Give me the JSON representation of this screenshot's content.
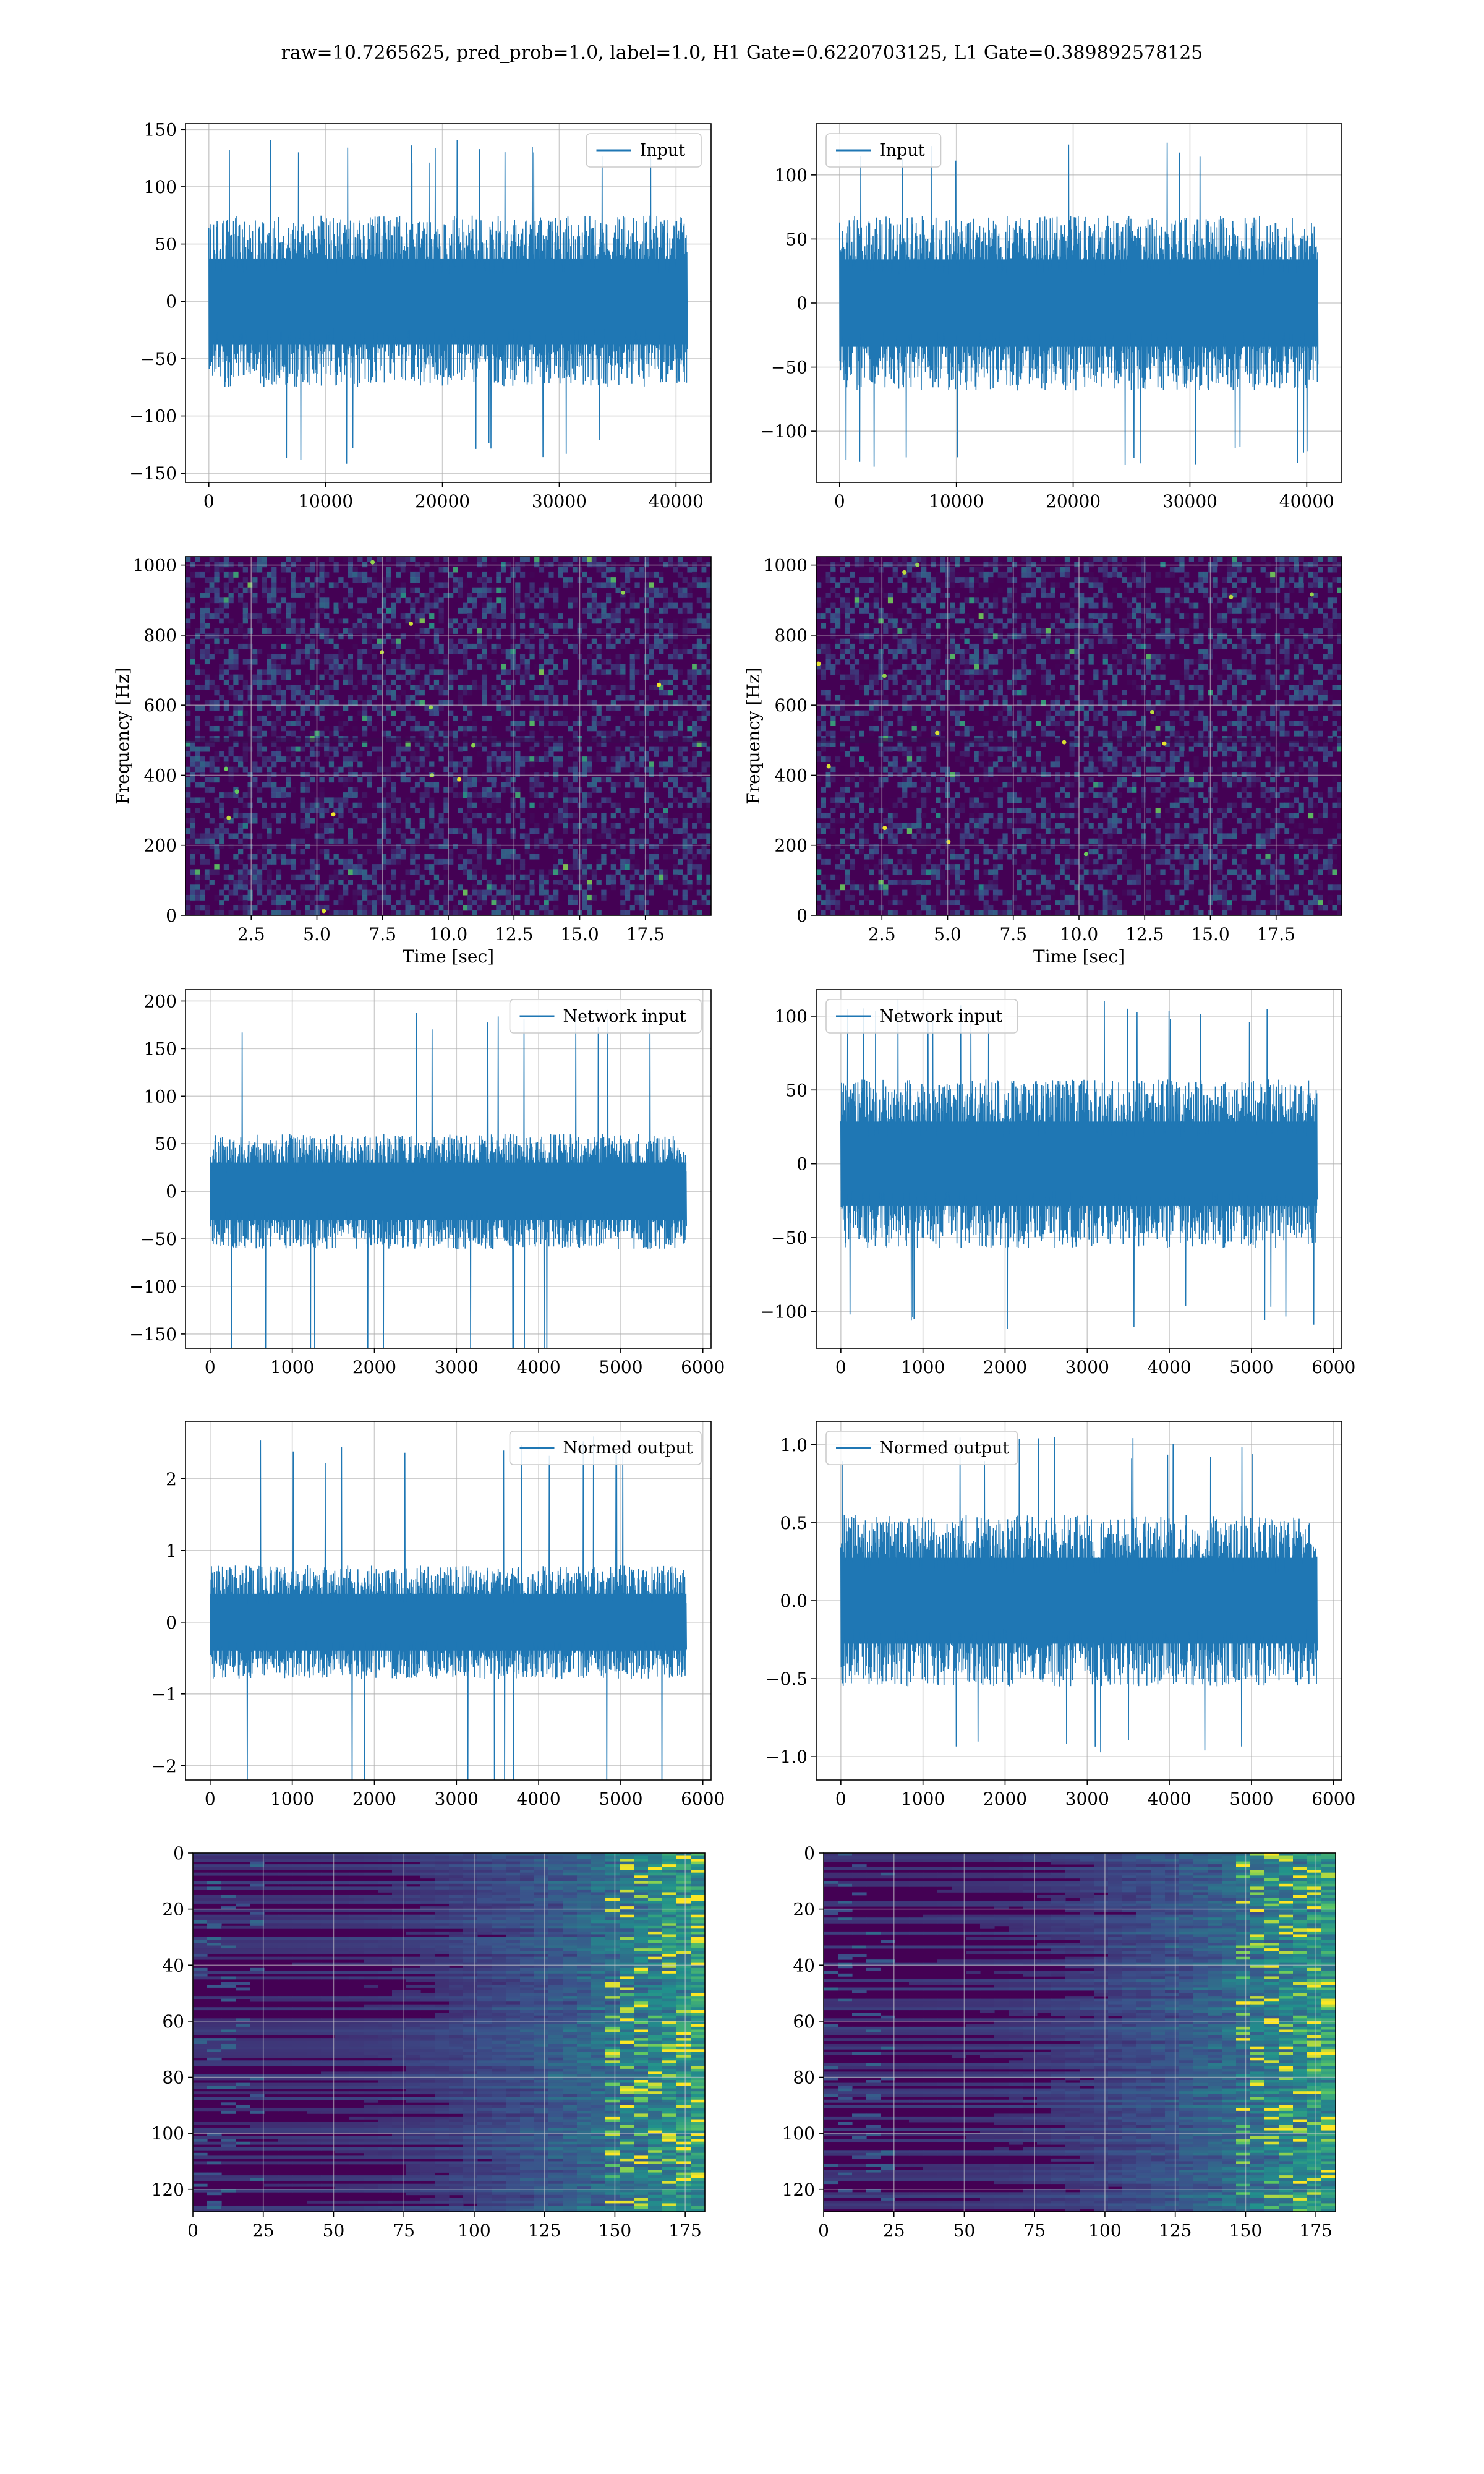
{
  "suptitle": "raw=10.7265625, pred_prob=1.0, label=1.0, H1 Gate=0.6220703125, L1 Gate=0.389892578125",
  "colors": {
    "line": "#1f77b4",
    "grid": "#b0b0b0",
    "viridis_dark": "#440154",
    "viridis_mid": "#21918c",
    "viridis_bright": "#fde725"
  },
  "chart_data": [
    {
      "id": "h1-input",
      "type": "line",
      "title": "",
      "xlabel": "",
      "ylabel": "",
      "legend": "Input",
      "legend_loc": "upper right",
      "grid": true,
      "xlim": [
        -2000,
        43000
      ],
      "ylim": [
        -158,
        155
      ],
      "xticks": [
        0,
        10000,
        20000,
        30000,
        40000
      ],
      "yticks": [
        -150,
        -100,
        -50,
        0,
        50,
        100,
        150
      ],
      "x_range": [
        0,
        40960
      ],
      "envelope": {
        "typical": 68,
        "peak": 142
      }
    },
    {
      "id": "l1-input",
      "type": "line",
      "title": "",
      "xlabel": "",
      "ylabel": "",
      "legend": "Input",
      "legend_loc": "upper left",
      "grid": true,
      "xlim": [
        -2000,
        43000
      ],
      "ylim": [
        -140,
        140
      ],
      "xticks": [
        0,
        10000,
        20000,
        30000,
        40000
      ],
      "yticks": [
        -100,
        -50,
        0,
        50,
        100
      ],
      "x_range": [
        0,
        40960
      ],
      "envelope": {
        "typical": 62,
        "peak": 128
      }
    },
    {
      "id": "h1-spectrogram",
      "type": "heatmap",
      "title": "",
      "xlabel": "Time [sec]",
      "ylabel": "Frequency [Hz]",
      "grid": true,
      "colormap": "viridis",
      "xlim": [
        0,
        20
      ],
      "ylim": [
        0,
        1024
      ],
      "xticks": [
        2.5,
        5.0,
        7.5,
        10.0,
        12.5,
        15.0,
        17.5
      ],
      "yticks": [
        0,
        200,
        400,
        600,
        800,
        1000
      ]
    },
    {
      "id": "l1-spectrogram",
      "type": "heatmap",
      "title": "",
      "xlabel": "Time [sec]",
      "ylabel": "Frequency [Hz]",
      "grid": true,
      "colormap": "viridis",
      "xlim": [
        0,
        20
      ],
      "ylim": [
        0,
        1024
      ],
      "xticks": [
        2.5,
        5.0,
        7.5,
        10.0,
        12.5,
        15.0,
        17.5
      ],
      "yticks": [
        0,
        200,
        400,
        600,
        800,
        1000
      ]
    },
    {
      "id": "h1-network-input",
      "type": "line",
      "title": "",
      "xlabel": "",
      "ylabel": "",
      "legend": "Network input",
      "legend_loc": "upper right",
      "grid": true,
      "xlim": [
        -300,
        6100
      ],
      "ylim": [
        -165,
        212
      ],
      "xticks": [
        0,
        1000,
        2000,
        3000,
        4000,
        5000,
        6000
      ],
      "yticks": [
        -150,
        -100,
        -50,
        0,
        50,
        100,
        150,
        200
      ],
      "x_range": [
        0,
        5800
      ],
      "envelope": {
        "typical": 55,
        "peak": 195
      }
    },
    {
      "id": "l1-network-input",
      "type": "line",
      "title": "",
      "xlabel": "",
      "ylabel": "",
      "legend": "Network input",
      "legend_loc": "upper left",
      "grid": true,
      "xlim": [
        -300,
        6100
      ],
      "ylim": [
        -125,
        118
      ],
      "xticks": [
        0,
        1000,
        2000,
        3000,
        4000,
        5000,
        6000
      ],
      "yticks": [
        -100,
        -50,
        0,
        50,
        100
      ],
      "x_range": [
        0,
        5800
      ],
      "envelope": {
        "typical": 52,
        "peak": 112
      }
    },
    {
      "id": "h1-normed-output",
      "type": "line",
      "title": "",
      "xlabel": "",
      "ylabel": "",
      "legend": "Normed output",
      "legend_loc": "upper right",
      "grid": true,
      "xlim": [
        -300,
        6100
      ],
      "ylim": [
        -2.2,
        2.8
      ],
      "xticks": [
        0,
        1000,
        2000,
        3000,
        4000,
        5000,
        6000
      ],
      "yticks": [
        -2,
        -1,
        0,
        1,
        2
      ],
      "x_range": [
        0,
        5800
      ],
      "envelope": {
        "typical": 0.72,
        "peak": 2.6
      }
    },
    {
      "id": "l1-normed-output",
      "type": "line",
      "title": "",
      "xlabel": "",
      "ylabel": "",
      "legend": "Normed output",
      "legend_loc": "upper left",
      "grid": true,
      "xlim": [
        -300,
        6100
      ],
      "ylim": [
        -1.15,
        1.15
      ],
      "xticks": [
        0,
        1000,
        2000,
        3000,
        4000,
        5000,
        6000
      ],
      "yticks": [
        -1.0,
        -0.5,
        0.0,
        0.5,
        1.0
      ],
      "x_range": [
        0,
        5800
      ],
      "envelope": {
        "typical": 0.5,
        "peak": 1.05
      }
    },
    {
      "id": "h1-feature-map",
      "type": "heatmap",
      "title": "",
      "xlabel": "",
      "ylabel": "",
      "grid": true,
      "colormap": "viridis",
      "xlim": [
        0,
        182
      ],
      "ylim": [
        128,
        0
      ],
      "xticks": [
        0,
        25,
        50,
        75,
        100,
        125,
        150,
        175
      ],
      "yticks": [
        0,
        20,
        40,
        60,
        80,
        100,
        120
      ]
    },
    {
      "id": "l1-feature-map",
      "type": "heatmap",
      "title": "",
      "xlabel": "",
      "ylabel": "",
      "grid": true,
      "colormap": "viridis",
      "xlim": [
        0,
        182
      ],
      "ylim": [
        128,
        0
      ],
      "xticks": [
        0,
        25,
        50,
        75,
        100,
        125,
        150,
        175
      ],
      "yticks": [
        0,
        20,
        40,
        60,
        80,
        100,
        120
      ]
    }
  ]
}
